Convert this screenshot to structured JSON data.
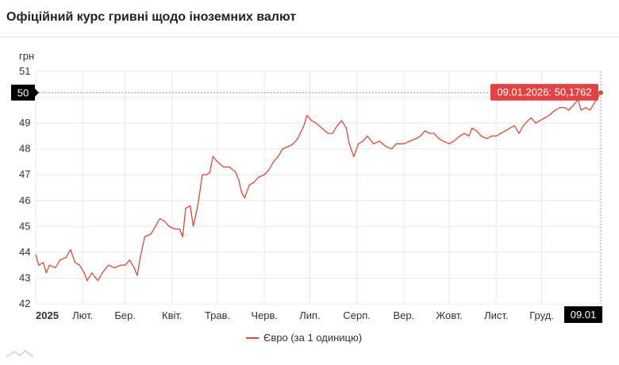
{
  "header": {
    "title": "Офіційний курс гривні щодо іноземних валют"
  },
  "legend": {
    "label": "Євро (за 1 одиницю)"
  },
  "colors": {
    "series": "#d64b3a",
    "tooltip_bg": "#e04343",
    "crosshair_bg": "#000000",
    "grid": "#e8e8e8"
  },
  "chart_data": {
    "type": "line",
    "ylabel": "грн",
    "ylim": [
      42,
      51
    ],
    "yticks": [
      42,
      43,
      44,
      45,
      46,
      47,
      48,
      49,
      50,
      51
    ],
    "xlim": [
      "2025-01-01",
      "2026-01-09"
    ],
    "xticks": [
      {
        "date": "2025-01-01",
        "label": "2025"
      },
      {
        "date": "2025-02-01",
        "label": "Лют."
      },
      {
        "date": "2025-03-01",
        "label": "Бер."
      },
      {
        "date": "2025-04-01",
        "label": "Квіт."
      },
      {
        "date": "2025-05-01",
        "label": "Трав."
      },
      {
        "date": "2025-06-01",
        "label": "Черв."
      },
      {
        "date": "2025-07-01",
        "label": "Лип."
      },
      {
        "date": "2025-08-01",
        "label": "Серп."
      },
      {
        "date": "2025-09-01",
        "label": "Вер."
      },
      {
        "date": "2025-10-01",
        "label": "Жовт."
      },
      {
        "date": "2025-11-01",
        "label": "Лист."
      },
      {
        "date": "2025-12-01",
        "label": "Груд."
      }
    ],
    "crosshair": {
      "x_label": "09.01",
      "y_label": "50",
      "y": 50.18
    },
    "tooltip": {
      "text": "09.01.2026: 50,1762"
    },
    "series": [
      {
        "name": "Євро (за 1 одиницю)",
        "points": [
          [
            "2025-01-01",
            43.9
          ],
          [
            "2025-01-03",
            43.5
          ],
          [
            "2025-01-06",
            43.6
          ],
          [
            "2025-01-08",
            43.2
          ],
          [
            "2025-01-10",
            43.5
          ],
          [
            "2025-01-14",
            43.4
          ],
          [
            "2025-01-17",
            43.7
          ],
          [
            "2025-01-21",
            43.8
          ],
          [
            "2025-01-24",
            44.1
          ],
          [
            "2025-01-27",
            43.6
          ],
          [
            "2025-01-30",
            43.5
          ],
          [
            "2025-02-02",
            43.2
          ],
          [
            "2025-02-04",
            42.9
          ],
          [
            "2025-02-07",
            43.2
          ],
          [
            "2025-02-11",
            42.9
          ],
          [
            "2025-02-14",
            43.2
          ],
          [
            "2025-02-18",
            43.5
          ],
          [
            "2025-02-22",
            43.4
          ],
          [
            "2025-02-26",
            43.5
          ],
          [
            "2025-03-01",
            43.5
          ],
          [
            "2025-03-04",
            43.7
          ],
          [
            "2025-03-07",
            43.4
          ],
          [
            "2025-03-09",
            43.1
          ],
          [
            "2025-03-11",
            43.8
          ],
          [
            "2025-03-14",
            44.6
          ],
          [
            "2025-03-18",
            44.7
          ],
          [
            "2025-03-21",
            45.0
          ],
          [
            "2025-03-24",
            45.3
          ],
          [
            "2025-03-27",
            45.2
          ],
          [
            "2025-03-30",
            45.0
          ],
          [
            "2025-04-03",
            44.9
          ],
          [
            "2025-04-06",
            44.9
          ],
          [
            "2025-04-08",
            44.6
          ],
          [
            "2025-04-10",
            45.7
          ],
          [
            "2025-04-13",
            45.8
          ],
          [
            "2025-04-15",
            45.0
          ],
          [
            "2025-04-18",
            45.8
          ],
          [
            "2025-04-21",
            47.0
          ],
          [
            "2025-04-24",
            47.0
          ],
          [
            "2025-04-26",
            47.1
          ],
          [
            "2025-04-28",
            47.7
          ],
          [
            "2025-05-01",
            47.5
          ],
          [
            "2025-05-05",
            47.3
          ],
          [
            "2025-05-09",
            47.3
          ],
          [
            "2025-05-13",
            47.1
          ],
          [
            "2025-05-15",
            46.8
          ],
          [
            "2025-05-17",
            46.3
          ],
          [
            "2025-05-19",
            46.1
          ],
          [
            "2025-05-22",
            46.6
          ],
          [
            "2025-05-25",
            46.7
          ],
          [
            "2025-05-28",
            46.9
          ],
          [
            "2025-06-01",
            47.0
          ],
          [
            "2025-06-04",
            47.2
          ],
          [
            "2025-06-07",
            47.5
          ],
          [
            "2025-06-10",
            47.7
          ],
          [
            "2025-06-13",
            48.0
          ],
          [
            "2025-06-17",
            48.1
          ],
          [
            "2025-06-20",
            48.2
          ],
          [
            "2025-06-23",
            48.4
          ],
          [
            "2025-06-27",
            48.9
          ],
          [
            "2025-06-29",
            49.3
          ],
          [
            "2025-07-02",
            49.1
          ],
          [
            "2025-07-05",
            49.0
          ],
          [
            "2025-07-09",
            48.8
          ],
          [
            "2025-07-13",
            48.6
          ],
          [
            "2025-07-16",
            48.6
          ],
          [
            "2025-07-19",
            48.9
          ],
          [
            "2025-07-22",
            49.1
          ],
          [
            "2025-07-25",
            48.8
          ],
          [
            "2025-07-27",
            48.2
          ],
          [
            "2025-07-30",
            47.7
          ],
          [
            "2025-08-02",
            48.2
          ],
          [
            "2025-08-05",
            48.3
          ],
          [
            "2025-08-08",
            48.5
          ],
          [
            "2025-08-12",
            48.2
          ],
          [
            "2025-08-16",
            48.3
          ],
          [
            "2025-08-20",
            48.1
          ],
          [
            "2025-08-24",
            48.0
          ],
          [
            "2025-08-27",
            48.2
          ],
          [
            "2025-09-01",
            48.2
          ],
          [
            "2025-09-05",
            48.3
          ],
          [
            "2025-09-09",
            48.4
          ],
          [
            "2025-09-12",
            48.5
          ],
          [
            "2025-09-15",
            48.7
          ],
          [
            "2025-09-18",
            48.6
          ],
          [
            "2025-09-21",
            48.6
          ],
          [
            "2025-09-24",
            48.4
          ],
          [
            "2025-09-27",
            48.3
          ],
          [
            "2025-10-01",
            48.2
          ],
          [
            "2025-10-04",
            48.3
          ],
          [
            "2025-10-08",
            48.5
          ],
          [
            "2025-10-11",
            48.6
          ],
          [
            "2025-10-14",
            48.5
          ],
          [
            "2025-10-16",
            48.8
          ],
          [
            "2025-10-19",
            48.7
          ],
          [
            "2025-10-22",
            48.5
          ],
          [
            "2025-10-26",
            48.4
          ],
          [
            "2025-10-29",
            48.5
          ],
          [
            "2025-11-01",
            48.5
          ],
          [
            "2025-11-04",
            48.6
          ],
          [
            "2025-11-07",
            48.7
          ],
          [
            "2025-11-10",
            48.8
          ],
          [
            "2025-11-13",
            48.9
          ],
          [
            "2025-11-16",
            48.6
          ],
          [
            "2025-11-19",
            48.9
          ],
          [
            "2025-11-22",
            49.1
          ],
          [
            "2025-11-24",
            49.2
          ],
          [
            "2025-11-27",
            49.0
          ],
          [
            "2025-11-30",
            49.1
          ],
          [
            "2025-12-03",
            49.2
          ],
          [
            "2025-12-06",
            49.3
          ],
          [
            "2025-12-10",
            49.5
          ],
          [
            "2025-12-13",
            49.6
          ],
          [
            "2025-12-16",
            49.6
          ],
          [
            "2025-12-19",
            49.5
          ],
          [
            "2025-12-22",
            49.7
          ],
          [
            "2025-12-25",
            49.9
          ],
          [
            "2025-12-27",
            49.5
          ],
          [
            "2025-12-30",
            49.6
          ],
          [
            "2026-01-02",
            49.5
          ],
          [
            "2026-01-05",
            49.8
          ],
          [
            "2026-01-07",
            50.0
          ],
          [
            "2026-01-09",
            50.18
          ]
        ]
      }
    ]
  }
}
